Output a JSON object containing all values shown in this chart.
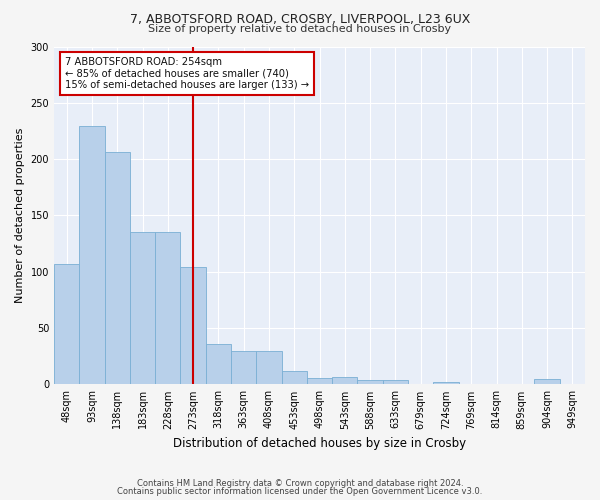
{
  "title1": "7, ABBOTSFORD ROAD, CROSBY, LIVERPOOL, L23 6UX",
  "title2": "Size of property relative to detached houses in Crosby",
  "xlabel": "Distribution of detached houses by size in Crosby",
  "ylabel": "Number of detached properties",
  "footer1": "Contains HM Land Registry data © Crown copyright and database right 2024.",
  "footer2": "Contains public sector information licensed under the Open Government Licence v3.0.",
  "annotation_line1": "7 ABBOTSFORD ROAD: 254sqm",
  "annotation_line2": "← 85% of detached houses are smaller (740)",
  "annotation_line3": "15% of semi-detached houses are larger (133) →",
  "bar_labels": [
    "48sqm",
    "93sqm",
    "138sqm",
    "183sqm",
    "228sqm",
    "273sqm",
    "318sqm",
    "363sqm",
    "408sqm",
    "453sqm",
    "498sqm",
    "543sqm",
    "588sqm",
    "633sqm",
    "679sqm",
    "724sqm",
    "769sqm",
    "814sqm",
    "859sqm",
    "904sqm",
    "949sqm"
  ],
  "bar_values": [
    107,
    229,
    206,
    135,
    135,
    104,
    36,
    30,
    30,
    12,
    6,
    7,
    4,
    4,
    0,
    2,
    0,
    0,
    0,
    5,
    0
  ],
  "bar_color": "#b8d0ea",
  "bar_edge_color": "#7aafd4",
  "vline_color": "#cc0000",
  "annotation_box_color": "#cc0000",
  "background_color": "#e8eef8",
  "fig_background": "#f5f5f5",
  "ylim": [
    0,
    300
  ],
  "yticks": [
    0,
    50,
    100,
    150,
    200,
    250,
    300
  ],
  "vline_pos": 5.0
}
